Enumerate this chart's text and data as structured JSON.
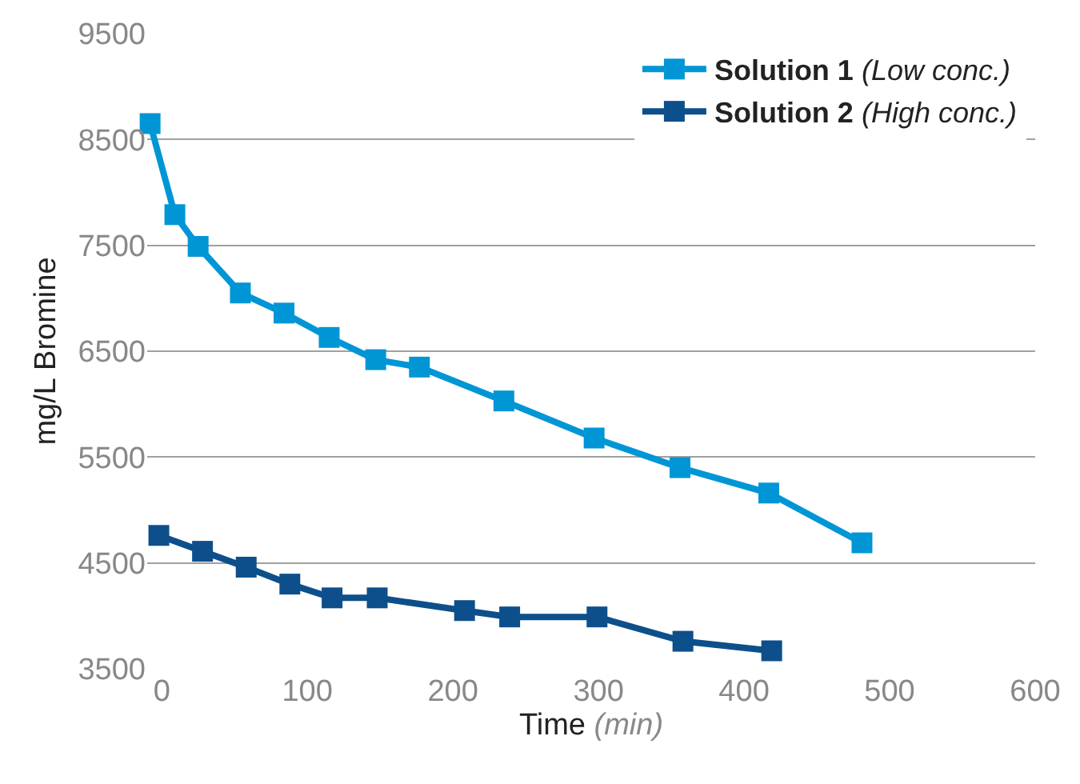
{
  "chart_data": {
    "type": "line",
    "xlabel": "Time (min)",
    "ylabel": "mg/L Bromine",
    "xlim": [
      -10,
      600
    ],
    "xticks": [
      0,
      100,
      200,
      300,
      400,
      500,
      600
    ],
    "ylim": [
      3500,
      9500
    ],
    "yticks": [
      3500,
      4500,
      5500,
      6500,
      7500,
      8500,
      9500
    ],
    "grid": "y",
    "legend": "top right",
    "marker": "square",
    "line_style": "solid",
    "series": [
      {
        "name": "Solution 1 (Low conc.)",
        "color": "#0096d6",
        "x": [
          -8,
          9,
          25,
          54,
          84,
          115,
          147,
          177,
          235,
          297,
          356,
          417,
          481
        ],
        "values": [
          8650,
          7790,
          7490,
          7050,
          6860,
          6630,
          6420,
          6350,
          6030,
          5680,
          5400,
          5160,
          4690
        ]
      },
      {
        "name": "Solution 2 (High conc.)",
        "color": "#0d4f8b",
        "x": [
          -2,
          28,
          58,
          88,
          117,
          148,
          208,
          239,
          299,
          358,
          419
        ],
        "values": [
          4760,
          4610,
          4460,
          4300,
          4170,
          4170,
          4050,
          3990,
          3990,
          3760,
          3670
        ]
      }
    ]
  }
}
